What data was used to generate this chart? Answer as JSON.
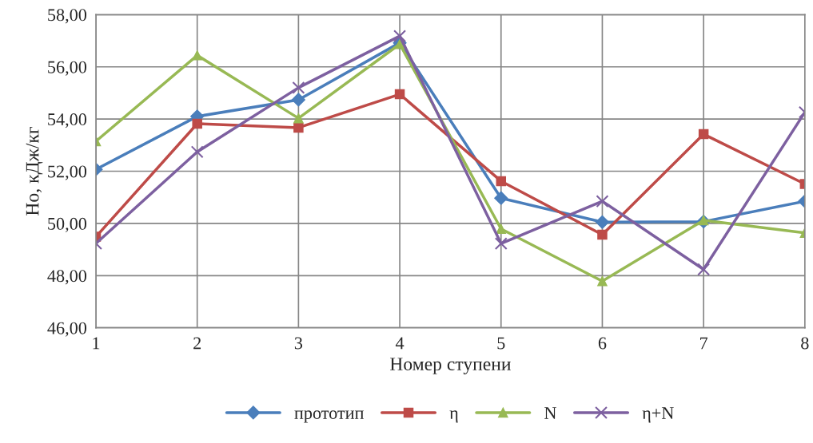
{
  "chart_data": {
    "type": "line",
    "xlabel": "Номер ступени",
    "ylabel": "Но, кДж/кг",
    "categories": [
      "1",
      "2",
      "3",
      "4",
      "5",
      "6",
      "7",
      "8"
    ],
    "series": [
      {
        "name": "прототип",
        "color": "#4a7ebb",
        "marker": "diamond",
        "values": [
          52.07,
          54.1,
          54.74,
          56.92,
          50.97,
          50.05,
          50.07,
          50.85
        ]
      },
      {
        "name": "η",
        "color": "#be4b48",
        "marker": "square",
        "values": [
          49.49,
          53.82,
          53.67,
          54.95,
          51.62,
          49.57,
          53.42,
          51.51
        ]
      },
      {
        "name": "N",
        "color": "#98b954",
        "marker": "triangle",
        "values": [
          53.15,
          56.44,
          54.03,
          56.87,
          49.79,
          47.79,
          50.12,
          49.64
        ]
      },
      {
        "name": "η+N",
        "color": "#7d60a0",
        "marker": "cross",
        "values": [
          49.23,
          52.74,
          55.2,
          57.18,
          49.23,
          50.85,
          48.24,
          54.26
        ]
      }
    ],
    "ylim": [
      46,
      58
    ],
    "yticks": [
      {
        "value": 46,
        "label": "46,00"
      },
      {
        "value": 48,
        "label": "48,00"
      },
      {
        "value": 50,
        "label": "50,00"
      },
      {
        "value": 52,
        "label": "52,00"
      },
      {
        "value": 54,
        "label": "54,00"
      },
      {
        "value": 56,
        "label": "56,00"
      },
      {
        "value": 58,
        "label": "58,00"
      }
    ],
    "grid": true,
    "legend": "bottom",
    "line_style": "solid"
  }
}
